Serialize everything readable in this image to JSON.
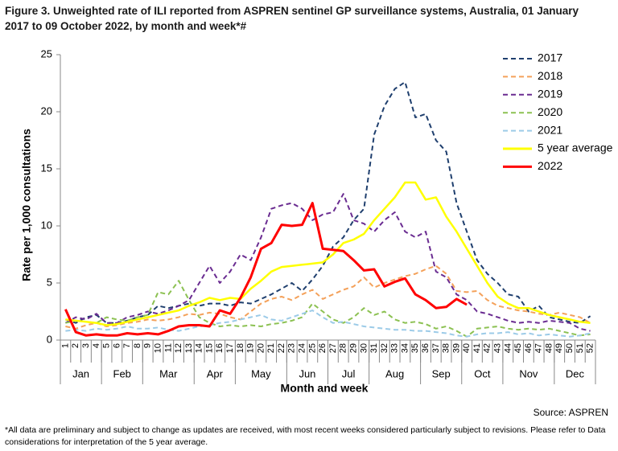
{
  "chart_data": {
    "type": "line",
    "title": "Figure 3. Unweighted rate of ILI reported from ASPREN sentinel GP surveillance systems, Australia, 01 January 2017 to 09 October 2022, by month and week*#",
    "y_label": "Rate per 1,000 consultations",
    "x_label": "Month and week",
    "source": "Source: ASPREN",
    "footnote": "*All data are preliminary and subject to change as updates are received, with most recent weeks considered particularly subject to revisions. Please refer to Data considerations for interpretation of the 5 year average.",
    "categories": [
      "1",
      "2",
      "3",
      "4",
      "5",
      "6",
      "7",
      "8",
      "9",
      "10",
      "11",
      "12",
      "13",
      "14",
      "15",
      "16",
      "17",
      "18",
      "19",
      "20",
      "21",
      "22",
      "23",
      "24",
      "25",
      "26",
      "27",
      "28",
      "29",
      "30",
      "31",
      "32",
      "33",
      "34",
      "35",
      "36",
      "37",
      "38",
      "39",
      "40",
      "41",
      "42",
      "43",
      "44",
      "45",
      "46",
      "47",
      "48",
      "49",
      "50",
      "51",
      "52"
    ],
    "x_groups": [
      {
        "label": "Jan",
        "weeks": 4
      },
      {
        "label": "Feb",
        "weeks": 4
      },
      {
        "label": "Mar",
        "weeks": 5
      },
      {
        "label": "Apr",
        "weeks": 4
      },
      {
        "label": "May",
        "weeks": 5
      },
      {
        "label": "Jun",
        "weeks": 4
      },
      {
        "label": "Jul",
        "weeks": 4
      },
      {
        "label": "Aug",
        "weeks": 5
      },
      {
        "label": "Sep",
        "weeks": 4
      },
      {
        "label": "Oct",
        "weeks": 4
      },
      {
        "label": "Nov",
        "weeks": 5
      },
      {
        "label": "Dec",
        "weeks": 4
      }
    ],
    "ylim": [
      0,
      25
    ],
    "yticks": [
      0,
      5,
      10,
      15,
      20,
      25
    ],
    "legend": "top-right",
    "series": [
      {
        "name": "2017",
        "color": "#1f3f6e",
        "style": "dashed",
        "values": [
          1.8,
          1.5,
          2.0,
          2.2,
          1.5,
          1.5,
          1.7,
          2.0,
          2.2,
          3.0,
          2.8,
          3.0,
          3.2,
          3.0,
          3.2,
          3.2,
          3.0,
          3.3,
          3.2,
          3.6,
          4.0,
          4.5,
          5.0,
          4.3,
          5.3,
          6.5,
          8.2,
          9.0,
          10.5,
          11.5,
          18.0,
          20.5,
          22.0,
          22.6,
          19.5,
          19.8,
          17.5,
          16.5,
          12.0,
          9.5,
          7.0,
          5.8,
          5.0,
          4.0,
          3.8,
          2.5,
          3.0,
          2.0,
          1.8,
          1.6,
          1.5,
          2.1
        ]
      },
      {
        "name": "2018",
        "color": "#f4a15a",
        "style": "dashed",
        "values": [
          1.2,
          1.0,
          1.3,
          1.5,
          1.2,
          1.3,
          1.5,
          1.6,
          1.8,
          1.7,
          1.8,
          2.0,
          2.3,
          2.2,
          2.4,
          2.3,
          2.0,
          1.8,
          2.5,
          3.2,
          3.6,
          3.8,
          3.5,
          4.0,
          4.4,
          3.6,
          4.0,
          4.4,
          4.7,
          5.5,
          4.6,
          5.0,
          5.3,
          5.6,
          5.8,
          6.2,
          6.5,
          5.8,
          4.3,
          4.2,
          4.3,
          3.5,
          3.0,
          2.8,
          2.6,
          2.5,
          2.3,
          2.2,
          2.4,
          2.2,
          2.0,
          1.5
        ]
      },
      {
        "name": "2019",
        "color": "#6a2c91",
        "style": "dashed",
        "values": [
          1.5,
          2.0,
          1.8,
          2.3,
          1.5,
          1.5,
          2.0,
          2.2,
          2.5,
          2.3,
          2.6,
          3.0,
          3.5,
          5.0,
          6.5,
          5.0,
          6.0,
          7.5,
          7.0,
          9.0,
          11.5,
          11.8,
          12.0,
          11.5,
          10.5,
          11.0,
          11.2,
          12.8,
          10.5,
          10.2,
          9.5,
          10.5,
          11.2,
          9.5,
          9.0,
          9.5,
          6.0,
          5.5,
          4.0,
          3.5,
          2.5,
          2.3,
          2.0,
          1.7,
          1.5,
          1.6,
          1.5,
          1.7,
          1.6,
          1.5,
          1.0,
          0.8
        ]
      },
      {
        "name": "2020",
        "color": "#8cc152",
        "style": "dashed",
        "values": [
          1.5,
          1.7,
          1.6,
          1.5,
          2.0,
          1.8,
          1.7,
          2.0,
          2.2,
          4.2,
          4.0,
          5.2,
          3.5,
          2.0,
          1.5,
          1.2,
          1.3,
          1.2,
          1.3,
          1.2,
          1.4,
          1.5,
          1.7,
          2.0,
          3.2,
          2.5,
          1.8,
          1.5,
          2.0,
          2.8,
          2.2,
          2.5,
          1.8,
          1.5,
          1.6,
          1.4,
          1.0,
          1.2,
          0.8,
          0.3,
          1.0,
          1.1,
          1.2,
          1.0,
          0.9,
          1.0,
          0.9,
          1.0,
          0.8,
          0.6,
          0.4,
          0.5
        ]
      },
      {
        "name": "2021",
        "color": "#9ccbe8",
        "style": "dashed",
        "values": [
          0.8,
          0.9,
          0.8,
          1.0,
          0.9,
          1.0,
          1.2,
          1.0,
          1.0,
          1.1,
          0.9,
          0.8,
          1.0,
          1.2,
          1.3,
          1.5,
          1.6,
          1.8,
          2.0,
          2.2,
          1.8,
          1.7,
          2.0,
          2.3,
          2.6,
          2.0,
          1.5,
          1.6,
          1.4,
          1.2,
          1.1,
          1.0,
          0.9,
          0.9,
          0.8,
          0.8,
          0.7,
          0.6,
          0.4,
          0.3,
          0.5,
          0.6,
          0.6,
          0.7,
          0.5,
          0.6,
          0.4,
          0.5,
          0.4,
          0.3,
          0.4,
          0.6
        ]
      },
      {
        "name": "5 year average",
        "color": "#ffff00",
        "style": "solid",
        "values": [
          1.8,
          1.7,
          1.6,
          1.5,
          1.3,
          1.4,
          1.6,
          1.8,
          2.0,
          2.2,
          2.4,
          2.6,
          3.0,
          3.3,
          3.7,
          3.5,
          3.7,
          3.6,
          4.5,
          5.2,
          6.0,
          6.4,
          6.5,
          6.6,
          6.7,
          6.8,
          7.5,
          8.5,
          8.8,
          9.3,
          10.5,
          11.5,
          12.5,
          13.8,
          13.8,
          12.3,
          12.5,
          10.8,
          9.5,
          8.0,
          6.5,
          5.0,
          3.8,
          3.2,
          2.8,
          2.8,
          2.5,
          2.2,
          2.0,
          1.8,
          1.6,
          1.5
        ]
      },
      {
        "name": "2022",
        "color": "#ff0000",
        "style": "solid",
        "values": [
          2.7,
          0.7,
          0.4,
          0.5,
          0.4,
          0.4,
          0.6,
          0.5,
          0.6,
          0.5,
          0.8,
          1.2,
          1.3,
          1.3,
          1.2,
          2.6,
          2.3,
          3.7,
          5.5,
          8.0,
          8.5,
          10.1,
          10.0,
          10.1,
          12.0,
          8.0,
          7.9,
          7.8,
          7.0,
          6.1,
          6.2,
          4.7,
          5.1,
          5.4,
          4.0,
          3.5,
          2.8,
          2.9,
          3.6,
          3.1,
          null,
          null,
          null,
          null,
          null,
          null,
          null,
          null,
          null,
          null,
          null,
          null
        ]
      }
    ]
  }
}
